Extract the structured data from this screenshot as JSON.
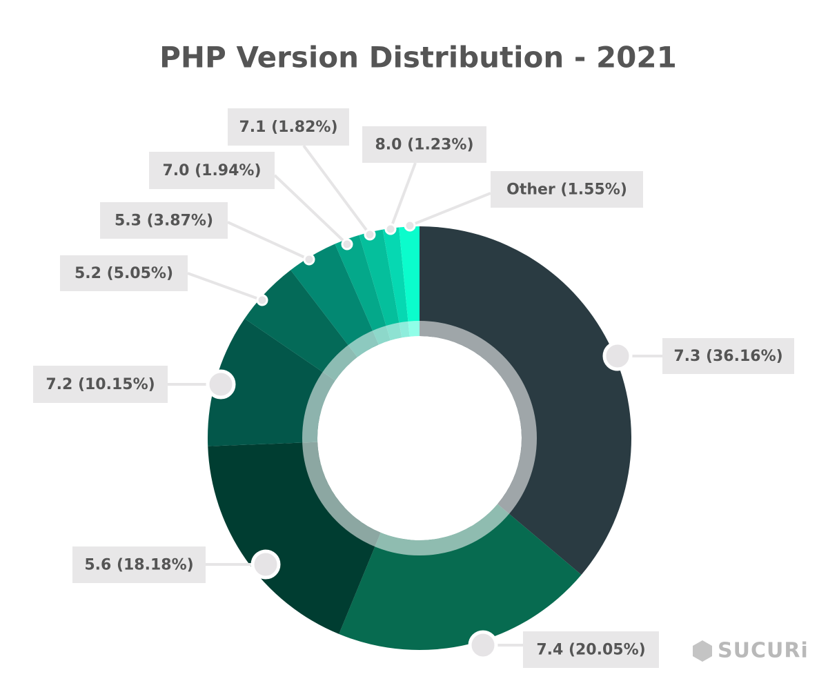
{
  "chart_data": {
    "type": "donut",
    "title": "PHP Version Distribution - 2021",
    "values": [
      36.16,
      20.05,
      18.18,
      10.15,
      5.05,
      3.87,
      1.94,
      1.82,
      1.23,
      1.55
    ],
    "value_labels": [
      "7.3 (36.16%)",
      "7.4 (20.05%)",
      "5.6 (18.18%)",
      "7.2 (10.15%)",
      "5.2 (5.05%)",
      "5.3 (3.87%)",
      "7.0 (1.94%)",
      "7.1 (1.82%)",
      "8.0 (1.23%)",
      "Other (1.55%)"
    ],
    "colors": [
      "#2a3b42",
      "#076b50",
      "#003d31",
      "#03574a",
      "#046a58",
      "#038872",
      "#04a88a",
      "#05bf9c",
      "#06d8b2",
      "#0bfccc"
    ],
    "annotation": "SUCURi"
  }
}
